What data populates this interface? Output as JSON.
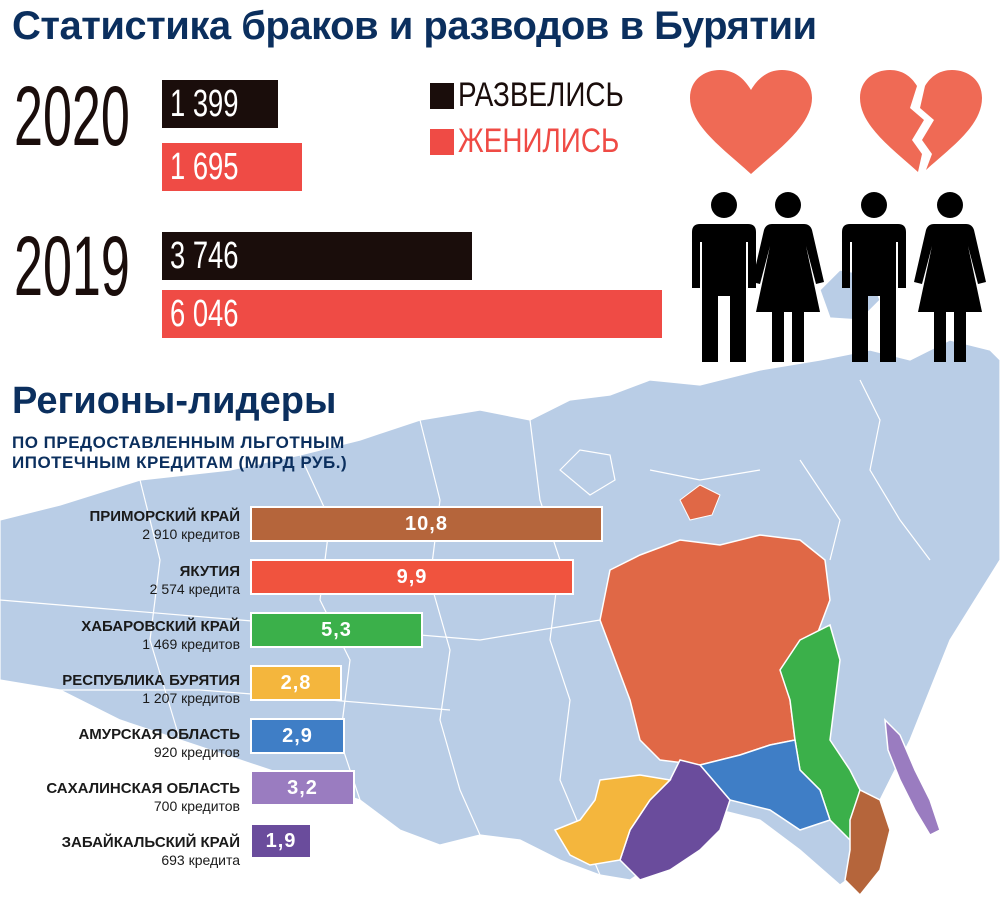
{
  "title": "Статистика браков и разводов в Бурятии",
  "colors": {
    "divorced": "#1a0d0b",
    "married": "#ef4b45",
    "heading": "#0b2f5e",
    "map": "#b9cde6",
    "heart": "#ef6a55"
  },
  "legend": {
    "divorced": "РАЗВЕЛИСЬ",
    "married": "ЖЕНИЛИСЬ"
  },
  "icons": [
    "heart-icon",
    "broken-heart-icon",
    "man-icon",
    "woman-icon"
  ],
  "section": {
    "title": "Регионы-лидеры",
    "subtitle_line1": "ПО ПРЕДОСТАВЛЕННЫМ ЛЬГОТНЫМ",
    "subtitle_line2": "ИПОТЕЧНЫМ КРЕДИТАМ (МЛРД РУБ.)"
  },
  "chart_data": [
    {
      "type": "bar",
      "title": "Статистика браков и разводов в Бурятии",
      "categories": [
        "2020",
        "2019"
      ],
      "series": [
        {
          "name": "РАЗВЕЛИСЬ",
          "values": [
            1399,
            3746
          ],
          "labels": [
            "1 399",
            "3 746"
          ],
          "color": "#1a0d0b"
        },
        {
          "name": "ЖЕНИЛИСЬ",
          "values": [
            1695,
            6046
          ],
          "labels": [
            "1 695",
            "6 046"
          ],
          "color": "#ef4b45"
        }
      ]
    },
    {
      "type": "bar",
      "title": "Регионы-лидеры",
      "subtitle": "ПО ПРЕДОСТАВЛЕННЫМ ЛЬГОТНЫМ ИПОТЕЧНЫМ КРЕДИТАМ (МЛРД РУБ.)",
      "categories": [
        "ПРИМОРСКИЙ КРАЙ",
        "ЯКУТИЯ",
        "ХАБАРОВСКИЙ КРАЙ",
        "РЕСПУБЛИКА БУРЯТИЯ",
        "АМУРСКАЯ ОБЛАСТЬ",
        "САХАЛИНСКАЯ ОБЛАСТЬ",
        "ЗАБАЙКАЛЬСКИЙ КРАЙ"
      ],
      "values": [
        10.8,
        9.9,
        5.3,
        2.8,
        2.9,
        3.2,
        1.9
      ],
      "value_labels": [
        "10,8",
        "9,9",
        "5,3",
        "2,8",
        "2,9",
        "3,2",
        "1,9"
      ],
      "counts": [
        "2 910 кредитов",
        "2 574 кредита",
        "1 469 кредитов",
        "1 207 кредитов",
        "920 кредитов",
        "700 кредитов",
        "693 кредита"
      ],
      "colors": [
        "#b5653b",
        "#f0533e",
        "#3bb04a",
        "#f4b63d",
        "#3f7ec6",
        "#9a7cc0",
        "#6a4c9c"
      ]
    }
  ]
}
